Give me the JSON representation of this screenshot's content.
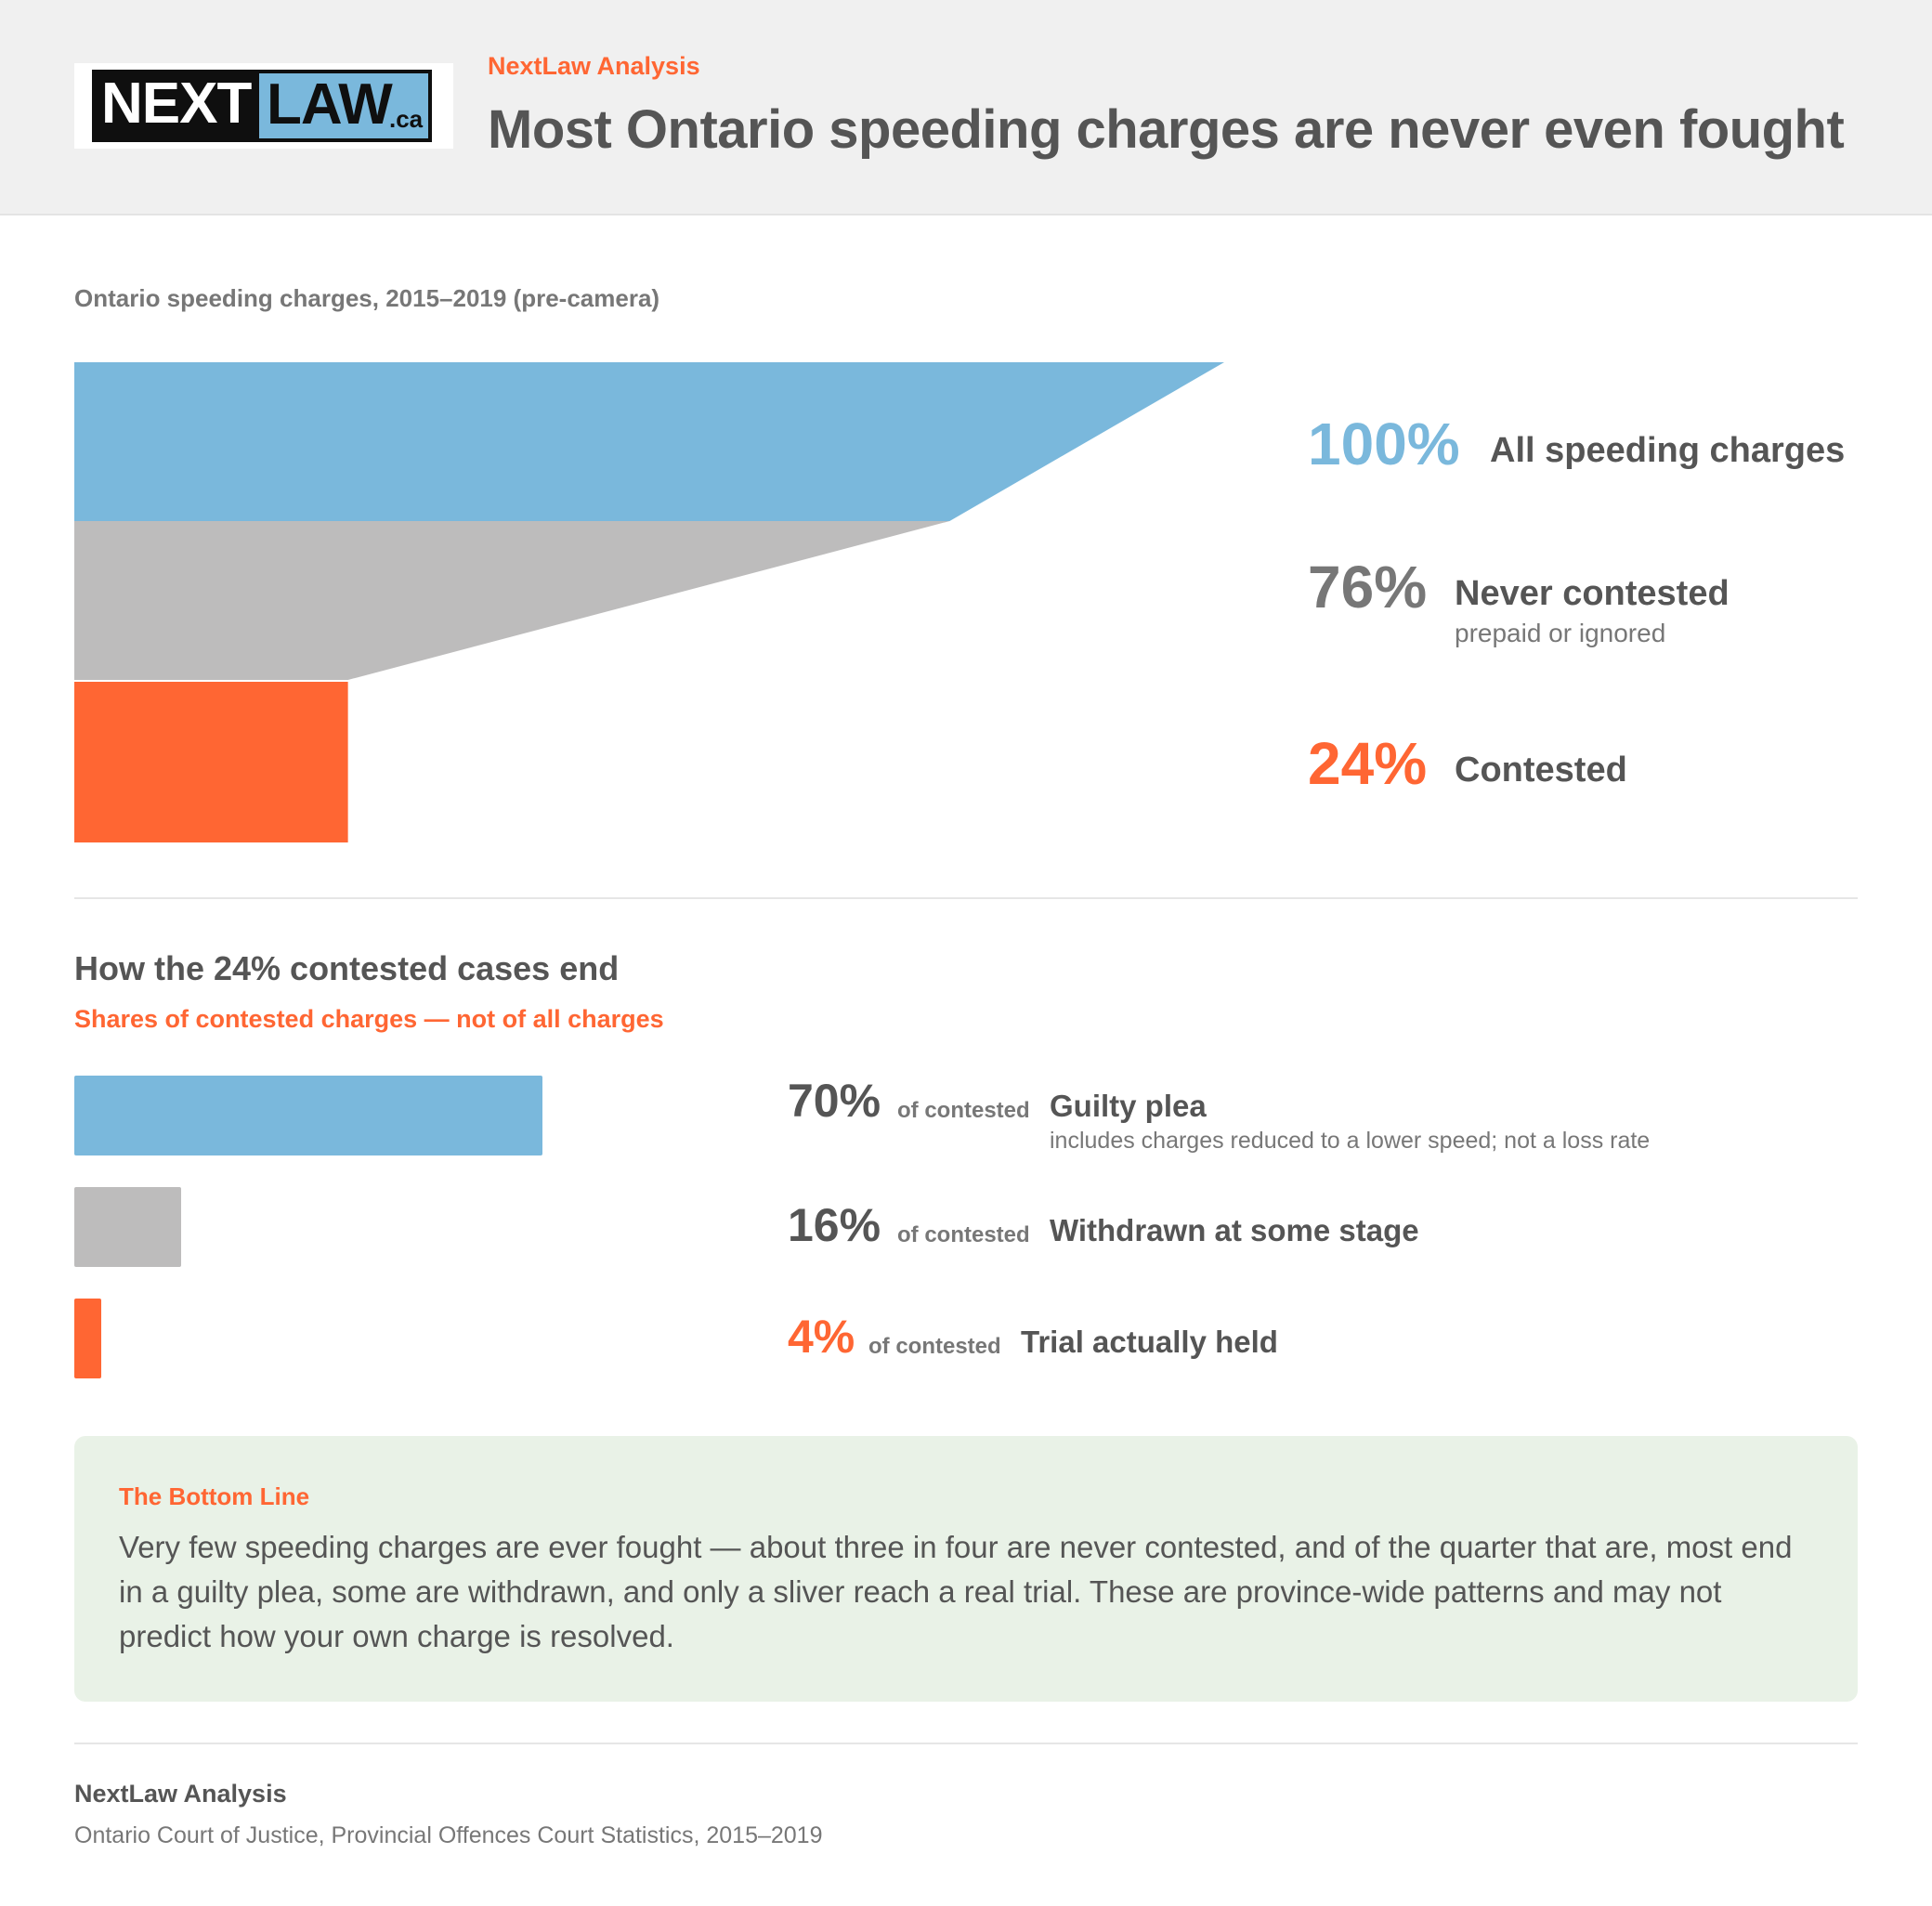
{
  "header": {
    "logo": {
      "left": "NEXT",
      "right": "LAW",
      "suffix": ".ca"
    },
    "kicker": "NextLaw Analysis",
    "title": "Most Ontario speeding charges are never even fought"
  },
  "colors": {
    "blue": "#7ab8dc",
    "gray": "#bdbcbc",
    "orange": "#ff6633",
    "text": "#555555",
    "muted": "#777777",
    "callout_bg": "#e9f2e7"
  },
  "chart_data": [
    {
      "type": "funnel",
      "subtitle": "Ontario speeding charges, 2015–2019 (pre-camera)",
      "stages": [
        {
          "pct_label": "100%",
          "value": 100,
          "label": "All speeding charges",
          "sublabel": "",
          "color": "#7ab8dc"
        },
        {
          "pct_label": "76%",
          "value": 76,
          "label": "Never contested",
          "sublabel": "prepaid or ignored",
          "color": "#bdbcbc"
        },
        {
          "pct_label": "24%",
          "value": 24,
          "label": "Contested",
          "sublabel": "",
          "color": "#ff6633"
        }
      ]
    },
    {
      "type": "bar",
      "title": "How the 24% contested cases end",
      "subtitle": "Shares of contested charges — not of all charges",
      "unit_label": "of contested",
      "outcomes": [
        {
          "pct_label": "70%",
          "value": 70,
          "label": "Guilty plea",
          "note": "includes charges reduced to a lower speed; not a loss rate",
          "color": "#7ab8dc"
        },
        {
          "pct_label": "16%",
          "value": 16,
          "label": "Withdrawn at some stage",
          "note": "",
          "color": "#bdbcbc"
        },
        {
          "pct_label": "4%",
          "value": 4,
          "label": "Trial actually held",
          "note": "",
          "color": "#ff6633"
        }
      ]
    }
  ],
  "callout": {
    "title": "The Bottom Line",
    "body": "Very few speeding charges are ever fought — about three in four are never contested, and of the quarter that are, most end in a guilty plea, some are withdrawn, and only a sliver reach a real trial. These are province-wide patterns and may not predict how your own charge is resolved."
  },
  "footer": {
    "source_org": "NextLaw Analysis",
    "source": "Ontario Court of Justice, Provincial Offences Court Statistics, 2015–2019"
  }
}
